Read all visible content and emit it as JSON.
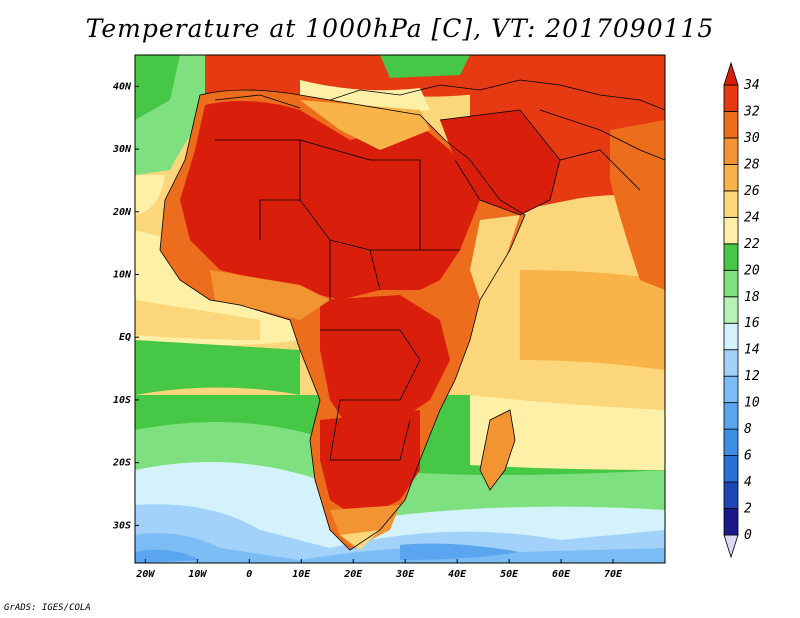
{
  "title": "Temperature at 1000hPa [C], VT: 2017090115",
  "footer": "GrADS: IGES/COLA",
  "map": {
    "lat_labels": [
      "40N",
      "30N",
      "20N",
      "10N",
      "EQ",
      "10S",
      "20S",
      "30S"
    ],
    "lat_values": [
      40,
      30,
      20,
      10,
      0,
      -10,
      -20,
      -30
    ],
    "lon_labels": [
      "20W",
      "10W",
      "0",
      "10E",
      "20E",
      "30E",
      "40E",
      "50E",
      "60E",
      "70E"
    ],
    "lon_values": [
      -20,
      -10,
      0,
      10,
      20,
      30,
      40,
      50,
      60,
      70
    ],
    "lon_range": [
      -22,
      80
    ],
    "lat_range": [
      -36,
      45
    ]
  },
  "colorbar": {
    "levels": [
      "0",
      "2",
      "4",
      "6",
      "8",
      "10",
      "12",
      "14",
      "16",
      "18",
      "20",
      "22",
      "24",
      "26",
      "28",
      "30",
      "32",
      "34"
    ],
    "colors": [
      "#1a1a8a",
      "#1e46b4",
      "#2a6fd6",
      "#3f8ee6",
      "#5aa5ef",
      "#7cbcf5",
      "#a2d2fa",
      "#d4f2fb",
      "#b6f2b6",
      "#7ee07e",
      "#46c846",
      "#fff0a8",
      "#fbd67a",
      "#f8b448",
      "#f29432",
      "#ec6e1c",
      "#e53a12",
      "#d91e0c"
    ]
  }
}
